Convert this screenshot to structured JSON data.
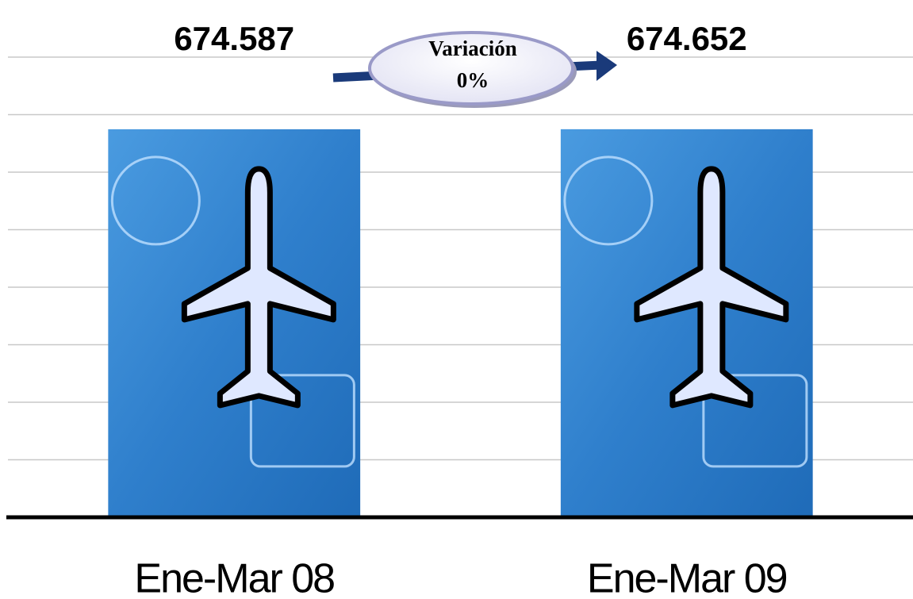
{
  "chart_data": {
    "type": "bar",
    "categories": [
      "Ene-Mar 08",
      "Ene-Mar 09"
    ],
    "values": [
      674587,
      674652
    ],
    "value_labels": [
      "674.587",
      "674.652"
    ],
    "color": "#2f7fcc",
    "ylim": [
      0,
      800000
    ],
    "yticks": [
      0,
      100000,
      200000,
      300000,
      400000,
      500000,
      600000,
      700000,
      800000
    ],
    "grid": true,
    "annotations": [
      "Variación",
      "0%"
    ]
  }
}
